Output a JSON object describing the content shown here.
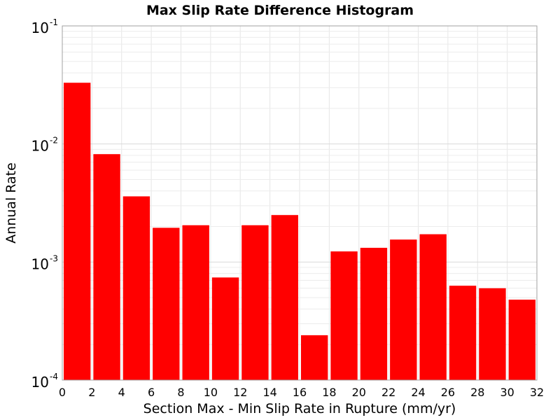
{
  "chart_data": {
    "type": "bar",
    "title": "Max Slip Rate Difference Histogram",
    "xlabel": "Section Max - Min Slip Rate in Rupture (mm/yr)",
    "ylabel": "Annual Rate",
    "xlim": [
      0,
      32
    ],
    "ylim": [
      0.0001,
      0.1
    ],
    "yscale": "log",
    "bin_width": 2,
    "x_ticks": [
      "0",
      "2",
      "4",
      "6",
      "8",
      "10",
      "12",
      "14",
      "16",
      "18",
      "20",
      "22",
      "24",
      "26",
      "28",
      "30",
      "32"
    ],
    "y_ticks": [
      {
        "base": "10",
        "exp": "-4",
        "value": 0.0001
      },
      {
        "base": "10",
        "exp": "-3",
        "value": 0.001
      },
      {
        "base": "10",
        "exp": "-2",
        "value": 0.01
      },
      {
        "base": "10",
        "exp": "-1",
        "value": 0.1
      }
    ],
    "bins": [
      {
        "x": 1,
        "value": 0.033
      },
      {
        "x": 3,
        "value": 0.0082
      },
      {
        "x": 5,
        "value": 0.0036
      },
      {
        "x": 7,
        "value": 0.00195
      },
      {
        "x": 9,
        "value": 0.00205
      },
      {
        "x": 11,
        "value": 0.00074
      },
      {
        "x": 13,
        "value": 0.00205
      },
      {
        "x": 15,
        "value": 0.0025
      },
      {
        "x": 17,
        "value": 0.00024
      },
      {
        "x": 19,
        "value": 0.00123
      },
      {
        "x": 21,
        "value": 0.00132
      },
      {
        "x": 23,
        "value": 0.00155
      },
      {
        "x": 25,
        "value": 0.00172
      },
      {
        "x": 27,
        "value": 0.00063
      },
      {
        "x": 29,
        "value": 0.0006
      },
      {
        "x": 31,
        "value": 0.00048
      }
    ],
    "bar_color": "#ff0000",
    "grid": true,
    "legend": "none"
  }
}
